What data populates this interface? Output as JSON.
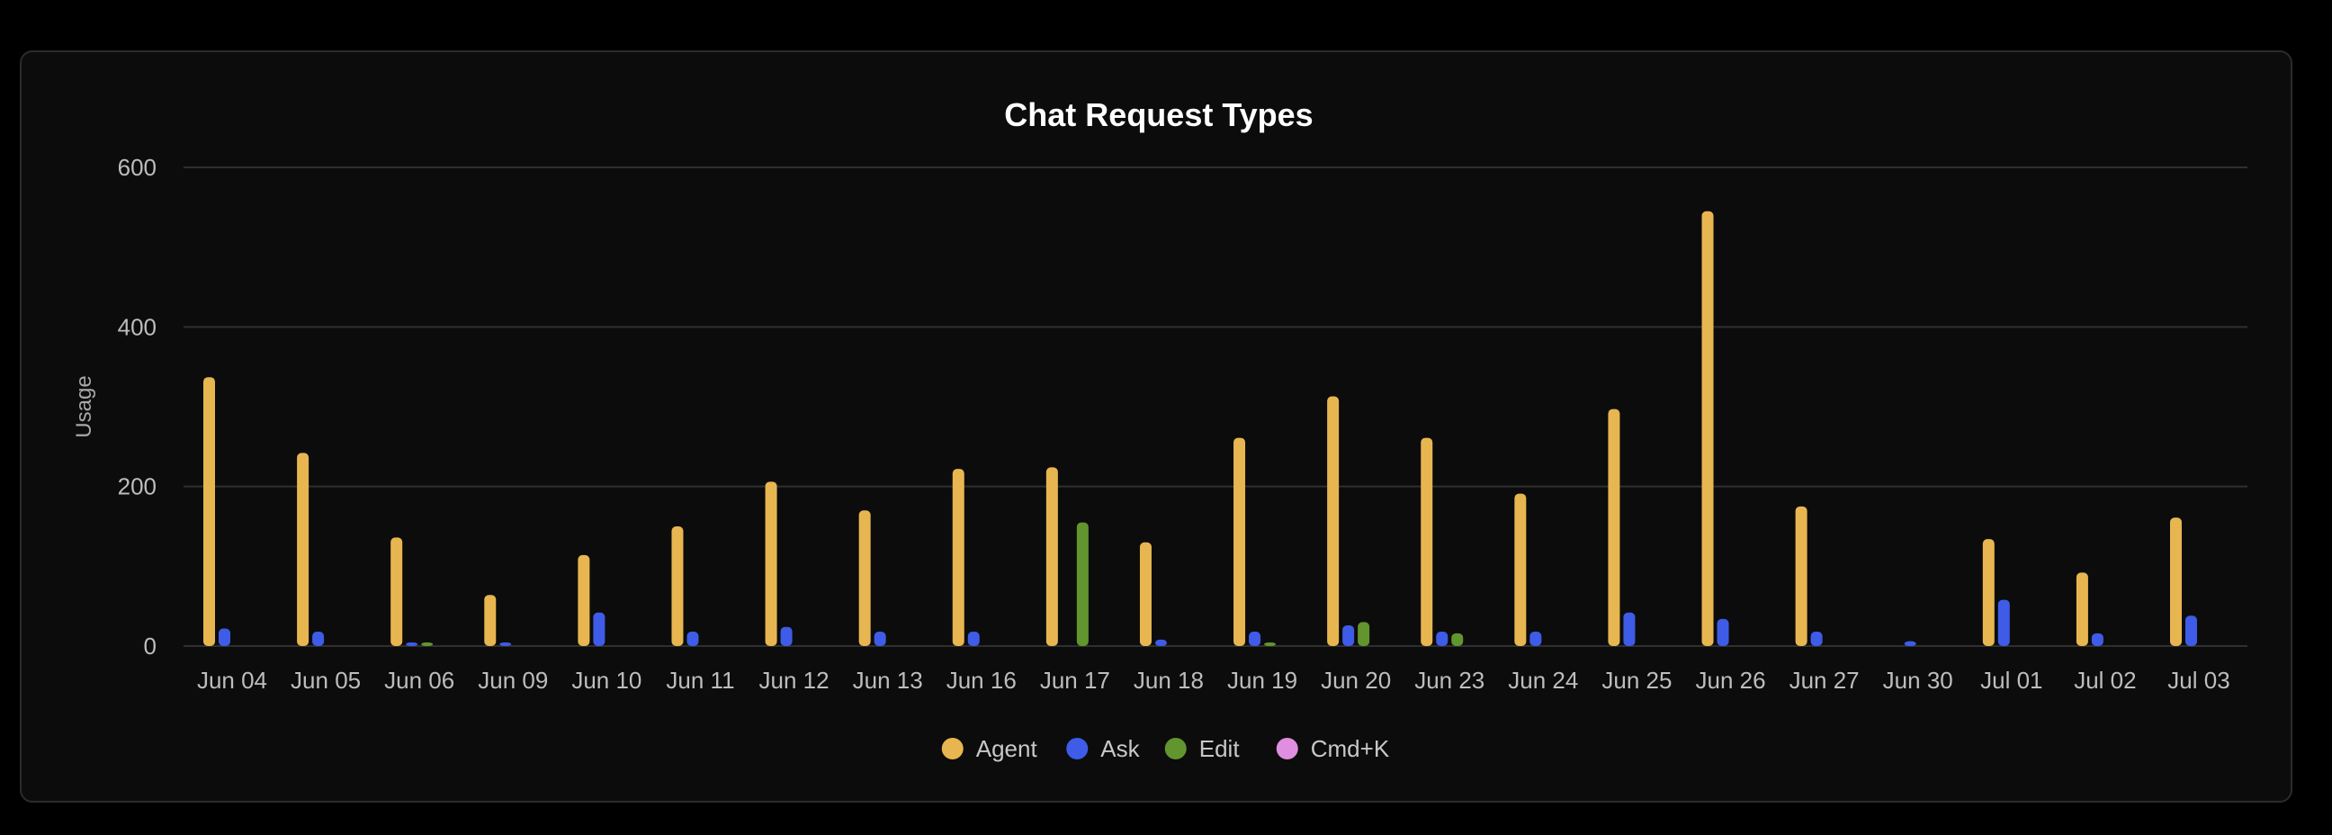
{
  "chart_data": {
    "type": "bar",
    "title": "Chat Request Types",
    "xlabel": "",
    "ylabel": "Usage",
    "ylim": [
      0,
      600
    ],
    "yticks": [
      0,
      200,
      400,
      600
    ],
    "grid": true,
    "legend_position": "bottom-center",
    "categories": [
      "Jun 04",
      "Jun 05",
      "Jun 06",
      "Jun 09",
      "Jun 10",
      "Jun 11",
      "Jun 12",
      "Jun 13",
      "Jun 16",
      "Jun 17",
      "Jun 18",
      "Jun 19",
      "Jun 20",
      "Jun 23",
      "Jun 24",
      "Jun 25",
      "Jun 26",
      "Jun 27",
      "Jun 30",
      "Jul 01",
      "Jul 02",
      "Jul 03"
    ],
    "series": [
      {
        "name": "Agent",
        "color": "#e8b650",
        "values": [
          337,
          242,
          136,
          64,
          114,
          150,
          206,
          170,
          222,
          224,
          130,
          261,
          313,
          261,
          191,
          297,
          545,
          175,
          0,
          134,
          92,
          161
        ]
      },
      {
        "name": "Ask",
        "color": "#3e5ce8",
        "values": [
          22,
          18,
          2,
          4,
          42,
          18,
          24,
          18,
          18,
          0,
          8,
          18,
          26,
          18,
          18,
          42,
          34,
          18,
          6,
          58,
          16,
          38
        ]
      },
      {
        "name": "Edit",
        "color": "#62952e",
        "values": [
          0,
          0,
          2,
          0,
          0,
          0,
          0,
          0,
          0,
          155,
          0,
          2,
          30,
          16,
          0,
          0,
          0,
          0,
          0,
          0,
          0,
          0
        ]
      },
      {
        "name": "Cmd+K",
        "color": "#e08ee0",
        "values": [
          0,
          0,
          0,
          0,
          0,
          0,
          0,
          0,
          0,
          0,
          0,
          0,
          0,
          0,
          0,
          0,
          0,
          0,
          0,
          0,
          0,
          0
        ]
      }
    ]
  }
}
